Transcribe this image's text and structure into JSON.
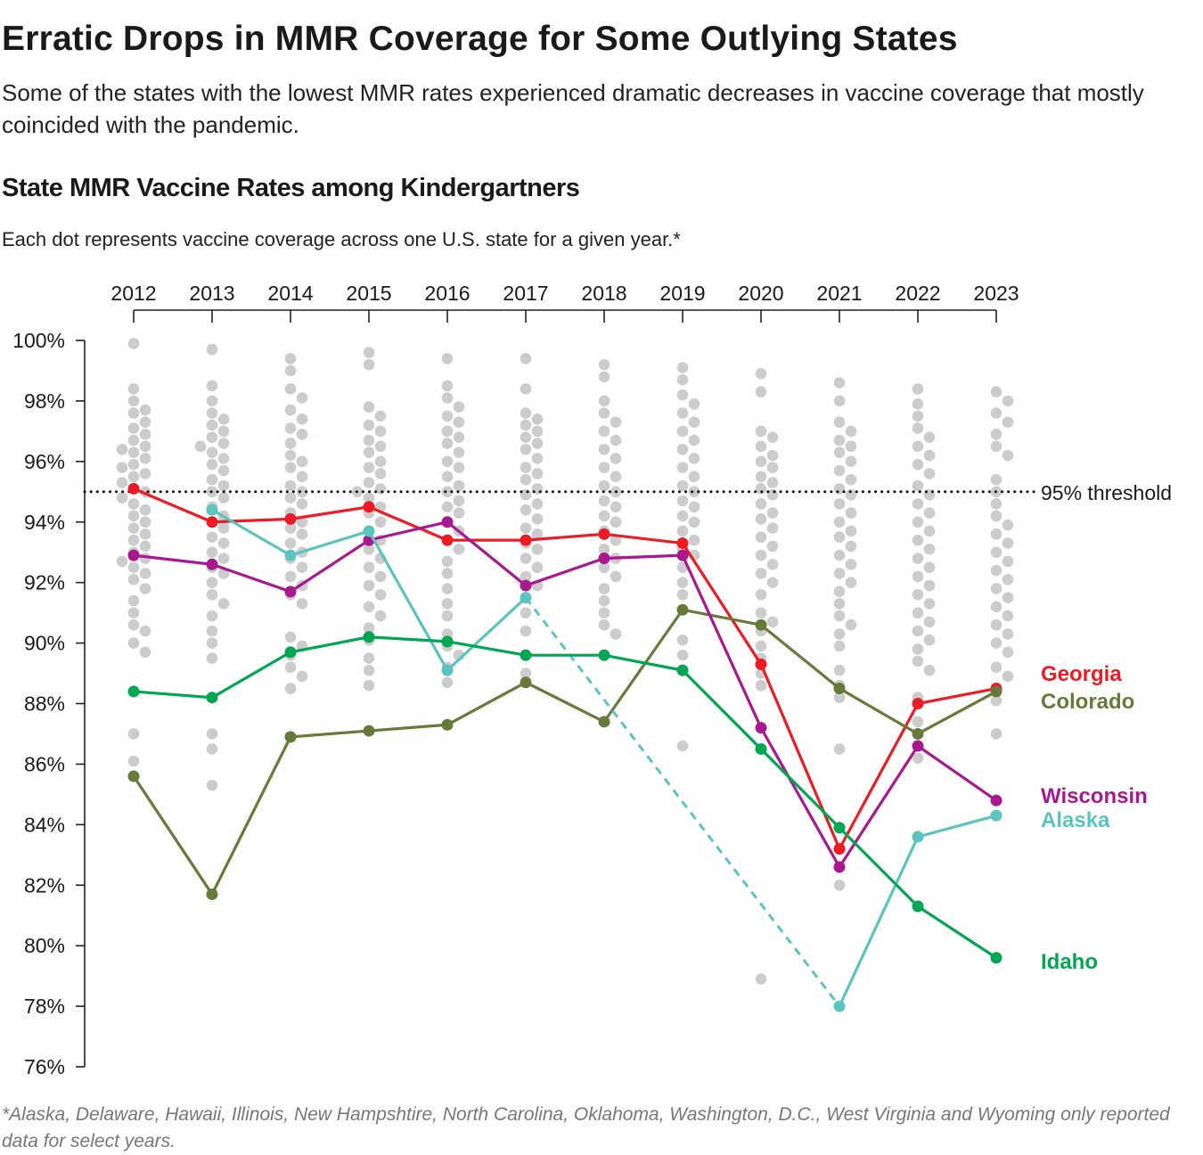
{
  "header": {
    "title": "Erratic Drops in MMR Coverage for Some Outlying States",
    "subtitle": "Some of the states with the lowest MMR rates experienced dramatic decreases in vaccine coverage that mostly coincided with the pandemic."
  },
  "chart_data": {
    "type": "scatter",
    "title": "State MMR Vaccine Rates among Kindergartners",
    "note": "Each dot represents vaccine coverage across one U.S. state for a given year.*",
    "footnote": "*Alaska, Delaware, Hawaii, Illinois, New Hampshtire, North Carolina, Oklahoma, Washington, D.C., West Virginia and Wyoming only reported data for select years.",
    "x_axis_position": "top",
    "years": [
      "2012",
      "2013",
      "2014",
      "2015",
      "2016",
      "2017",
      "2018",
      "2019",
      "2020",
      "2021",
      "2022",
      "2023"
    ],
    "ylim": [
      76,
      100
    ],
    "y_ticks": [
      "100%",
      "98%",
      "96%",
      "94%",
      "92%",
      "90%",
      "88%",
      "86%",
      "84%",
      "82%",
      "80%",
      "78%",
      "76%"
    ],
    "y_tick_values": [
      100,
      98,
      96,
      94,
      92,
      90,
      88,
      86,
      84,
      82,
      80,
      78,
      76
    ],
    "threshold": {
      "value": 95,
      "label": "95% threshold",
      "style": "dotted"
    },
    "dot_color": "#cccccc",
    "all_states": [
      [
        99.9,
        98.4,
        98.0,
        97.7,
        97.6,
        97.3,
        97.1,
        96.9,
        96.7,
        96.5,
        96.4,
        96.3,
        96.1,
        95.9,
        95.8,
        95.6,
        95.5,
        95.3,
        95.1,
        95.0,
        94.8,
        94.6,
        94.4,
        94.2,
        94.0,
        93.8,
        93.6,
        93.4,
        93.2,
        93.0,
        92.8,
        92.7,
        92.5,
        92.3,
        92.1,
        91.8,
        91.4,
        91.0,
        90.6,
        90.4,
        90.0,
        89.7,
        87.0,
        86.1
      ],
      [
        99.7,
        98.5,
        98.0,
        97.6,
        97.4,
        97.2,
        97.0,
        96.8,
        96.6,
        96.5,
        96.3,
        96.1,
        95.9,
        95.7,
        95.4,
        95.2,
        95.0,
        94.8,
        94.5,
        94.2,
        94.0,
        93.8,
        93.5,
        93.3,
        93.0,
        92.8,
        92.5,
        92.3,
        92.0,
        91.6,
        91.3,
        90.9,
        90.4,
        90.0,
        89.5,
        87.0,
        86.5,
        85.3
      ],
      [
        99.4,
        99.0,
        98.4,
        98.1,
        97.7,
        97.4,
        97.1,
        96.9,
        96.6,
        96.2,
        96.0,
        95.8,
        95.5,
        95.2,
        95.0,
        94.8,
        94.6,
        94.3,
        94.0,
        93.8,
        93.6,
        93.3,
        93.0,
        92.8,
        92.5,
        92.2,
        91.9,
        91.6,
        91.3,
        90.2,
        89.9,
        89.6,
        89.2,
        88.9,
        88.5
      ],
      [
        99.6,
        99.2,
        97.8,
        97.5,
        97.2,
        97.0,
        96.7,
        96.5,
        96.3,
        96.0,
        95.8,
        95.6,
        95.3,
        95.1,
        95.0,
        94.8,
        94.5,
        94.3,
        94.0,
        93.7,
        93.4,
        93.1,
        92.8,
        92.5,
        92.2,
        91.9,
        91.6,
        91.2,
        90.9,
        90.5,
        90.1,
        89.5,
        89.1,
        88.6
      ],
      [
        99.4,
        98.5,
        98.1,
        97.8,
        97.5,
        97.3,
        97.0,
        96.8,
        96.6,
        96.3,
        96.0,
        95.8,
        95.5,
        95.2,
        95.0,
        94.7,
        94.5,
        94.3,
        94.0,
        93.7,
        93.4,
        93.1,
        92.7,
        92.3,
        91.8,
        91.3,
        90.9,
        90.3,
        89.9,
        89.6,
        89.2,
        88.7
      ],
      [
        99.4,
        98.4,
        97.6,
        97.4,
        97.2,
        97.0,
        96.8,
        96.6,
        96.4,
        96.1,
        95.8,
        95.6,
        95.4,
        95.1,
        94.9,
        94.6,
        94.4,
        94.1,
        93.8,
        93.6,
        93.3,
        93.1,
        92.8,
        92.5,
        92.2,
        91.9,
        91.5,
        91.0,
        90.4,
        89.6,
        89.0
      ],
      [
        99.2,
        98.8,
        98.0,
        97.6,
        97.3,
        97.0,
        96.7,
        96.4,
        96.1,
        95.8,
        95.5,
        95.2,
        95.0,
        94.7,
        94.5,
        94.2,
        94.0,
        93.7,
        93.4,
        93.1,
        92.8,
        92.5,
        92.2,
        91.8,
        91.4,
        91.0,
        90.6,
        90.3
      ],
      [
        99.1,
        98.7,
        98.2,
        97.9,
        97.6,
        97.3,
        97.0,
        96.7,
        96.4,
        96.1,
        95.8,
        95.5,
        95.2,
        95.0,
        94.7,
        94.5,
        94.2,
        94.0,
        93.7,
        93.4,
        93.1,
        92.9,
        92.5,
        92.0,
        91.6,
        90.1,
        89.6,
        86.6
      ],
      [
        98.9,
        98.3,
        97.0,
        96.8,
        96.5,
        96.2,
        96.0,
        95.8,
        95.5,
        95.3,
        95.1,
        94.9,
        94.6,
        94.3,
        94.1,
        93.8,
        93.5,
        93.2,
        92.9,
        92.6,
        92.3,
        92.0,
        91.6,
        91.0,
        90.7,
        90.4,
        89.9,
        89.5,
        89.0,
        88.6,
        78.9
      ],
      [
        98.6,
        98.0,
        97.3,
        97.0,
        96.7,
        96.5,
        96.3,
        96.0,
        95.7,
        95.4,
        95.1,
        94.9,
        94.6,
        94.3,
        94.0,
        93.7,
        93.5,
        93.2,
        92.9,
        92.6,
        92.3,
        92.0,
        91.7,
        91.3,
        90.9,
        90.6,
        90.3,
        89.9,
        89.1,
        88.6,
        88.2,
        86.5,
        82.0
      ],
      [
        98.4,
        97.9,
        97.5,
        97.1,
        96.8,
        96.5,
        96.2,
        95.9,
        95.6,
        95.2,
        94.9,
        94.6,
        94.3,
        94.0,
        93.7,
        93.4,
        93.1,
        92.8,
        92.5,
        92.2,
        91.9,
        91.6,
        91.3,
        91.0,
        90.7,
        90.4,
        90.1,
        89.8,
        89.4,
        89.1,
        88.2,
        87.4,
        86.2
      ],
      [
        98.3,
        98.0,
        97.6,
        97.3,
        96.9,
        96.5,
        96.2,
        95.4,
        95.0,
        94.6,
        94.2,
        93.9,
        93.6,
        93.3,
        93.0,
        92.7,
        92.4,
        92.1,
        91.8,
        91.5,
        91.2,
        90.9,
        90.6,
        90.3,
        90.0,
        89.7,
        89.2,
        88.9,
        88.5,
        88.1,
        87.0
      ]
    ],
    "series": [
      {
        "name": "Georgia",
        "color": "#ed1c24",
        "values": [
          95.1,
          94.0,
          94.1,
          94.5,
          93.4,
          93.4,
          93.6,
          93.3,
          89.3,
          83.2,
          88.0,
          88.5
        ]
      },
      {
        "name": "Colorado",
        "color": "#677a3a",
        "values": [
          85.6,
          81.7,
          86.9,
          87.1,
          87.3,
          88.7,
          87.4,
          91.1,
          90.6,
          88.5,
          87.0,
          88.4
        ]
      },
      {
        "name": "Wisconsin",
        "color": "#a8198f",
        "values": [
          92.9,
          92.6,
          91.7,
          93.4,
          94.0,
          91.9,
          92.8,
          92.9,
          87.2,
          82.6,
          86.6,
          84.8
        ]
      },
      {
        "name": "Alaska",
        "color": "#5cc4bf",
        "values": [
          null,
          94.4,
          92.9,
          93.7,
          89.1,
          91.5,
          null,
          null,
          null,
          78.0,
          83.6,
          84.3
        ],
        "gap_style": "dashed"
      },
      {
        "name": "Idaho",
        "color": "#00a651",
        "values": [
          88.4,
          88.2,
          89.7,
          90.2,
          90.05,
          89.6,
          89.6,
          89.1,
          86.5,
          83.9,
          81.3,
          79.6
        ]
      }
    ]
  }
}
